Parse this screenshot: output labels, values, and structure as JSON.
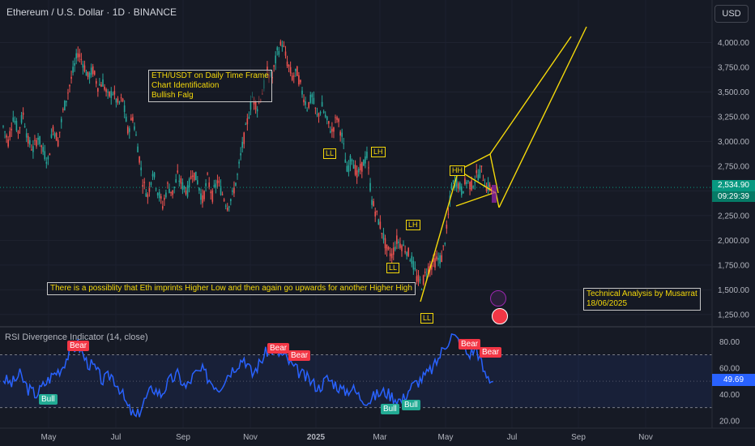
{
  "header": {
    "title": "Ethereum / U.S. Dollar · 1D · BINANCE",
    "currency_button": "USD"
  },
  "chart_data": {
    "type": "candlestick",
    "title": "Ethereum / U.S. Dollar · 1D · BINANCE",
    "price_axis": {
      "ticks": [
        "4,000.00",
        "3,750.00",
        "3,500.00",
        "3,250.00",
        "3,000.00",
        "2,750.00",
        "2,500.00",
        "2,250.00",
        "2,000.00",
        "1,750.00",
        "1,500.00",
        "1,250.00"
      ],
      "ylim": [
        1150,
        4250
      ]
    },
    "time_axis": {
      "ticks": [
        "May",
        "Jul",
        "Sep",
        "Nov",
        "2025",
        "Mar",
        "May",
        "Jul",
        "Sep",
        "Nov"
      ]
    },
    "last_price": "2,534.90",
    "countdown": "09:29:39",
    "price_path": [
      [
        0,
        3150
      ],
      [
        3,
        3000
      ],
      [
        6,
        3250
      ],
      [
        9,
        3100
      ],
      [
        12,
        3280
      ],
      [
        15,
        3000
      ],
      [
        18,
        2920
      ],
      [
        21,
        3050
      ],
      [
        24,
        2900
      ],
      [
        27,
        2800
      ],
      [
        30,
        3150
      ],
      [
        33,
        3000
      ],
      [
        36,
        3300
      ],
      [
        39,
        3500
      ],
      [
        42,
        3700
      ],
      [
        45,
        3900
      ],
      [
        48,
        3800
      ],
      [
        51,
        3650
      ],
      [
        54,
        3720
      ],
      [
        57,
        3560
      ],
      [
        60,
        3600
      ],
      [
        63,
        3450
      ],
      [
        66,
        3500
      ],
      [
        69,
        3380
      ],
      [
        72,
        3420
      ],
      [
        75,
        3100
      ],
      [
        78,
        3250
      ],
      [
        81,
        2950
      ],
      [
        84,
        2600
      ],
      [
        87,
        2450
      ],
      [
        90,
        2700
      ],
      [
        93,
        2500
      ],
      [
        96,
        2350
      ],
      [
        99,
        2550
      ],
      [
        102,
        2480
      ],
      [
        105,
        2650
      ],
      [
        108,
        2550
      ],
      [
        111,
        2500
      ],
      [
        114,
        2700
      ],
      [
        117,
        2600
      ],
      [
        120,
        2400
      ],
      [
        123,
        2620
      ],
      [
        126,
        2450
      ],
      [
        129,
        2600
      ],
      [
        132,
        2470
      ],
      [
        135,
        2350
      ],
      [
        138,
        2450
      ],
      [
        141,
        2650
      ],
      [
        144,
        2950
      ],
      [
        147,
        3200
      ],
      [
        150,
        3450
      ],
      [
        153,
        3350
      ],
      [
        156,
        3500
      ],
      [
        159,
        3700
      ],
      [
        162,
        3650
      ],
      [
        165,
        3900
      ],
      [
        168,
        4000
      ],
      [
        171,
        3800
      ],
      [
        174,
        3650
      ],
      [
        177,
        3700
      ],
      [
        180,
        3500
      ],
      [
        183,
        3350
      ],
      [
        186,
        3450
      ],
      [
        189,
        3250
      ],
      [
        192,
        3350
      ],
      [
        195,
        3200
      ],
      [
        198,
        3100
      ],
      [
        201,
        3250
      ],
      [
        204,
        3050
      ],
      [
        207,
        2700
      ],
      [
        210,
        2850
      ],
      [
        213,
        2650
      ],
      [
        216,
        2750
      ],
      [
        219,
        2850
      ],
      [
        222,
        2400
      ],
      [
        225,
        2250
      ],
      [
        228,
        2100
      ],
      [
        231,
        1900
      ],
      [
        234,
        1850
      ],
      [
        237,
        2000
      ],
      [
        240,
        1950
      ],
      [
        243,
        1900
      ],
      [
        246,
        1800
      ],
      [
        249,
        1620
      ],
      [
        252,
        1550
      ],
      [
        255,
        1700
      ],
      [
        258,
        1750
      ],
      [
        261,
        1800
      ],
      [
        264,
        1820
      ],
      [
        267,
        2100
      ],
      [
        270,
        2550
      ],
      [
        273,
        2600
      ],
      [
        276,
        2500
      ],
      [
        279,
        2600
      ],
      [
        282,
        2550
      ],
      [
        285,
        2650
      ],
      [
        288,
        2700
      ],
      [
        291,
        2540
      ],
      [
        294,
        2535
      ]
    ],
    "rsi": {
      "title": "RSI Divergence Indicator (14, close)",
      "axis_ticks": [
        "80.00",
        "60.00",
        "40.00",
        "20.00"
      ],
      "ylim": [
        15,
        90
      ],
      "band": [
        30,
        70
      ],
      "mid": 50,
      "value": "49.69",
      "path": [
        [
          0,
          52
        ],
        [
          5,
          48
        ],
        [
          10,
          55
        ],
        [
          15,
          44
        ],
        [
          20,
          40
        ],
        [
          25,
          48
        ],
        [
          30,
          55
        ],
        [
          35,
          60
        ],
        [
          40,
          72
        ],
        [
          45,
          78
        ],
        [
          50,
          65
        ],
        [
          55,
          60
        ],
        [
          60,
          50
        ],
        [
          65,
          55
        ],
        [
          70,
          45
        ],
        [
          75,
          30
        ],
        [
          80,
          22
        ],
        [
          85,
          35
        ],
        [
          90,
          45
        ],
        [
          95,
          40
        ],
        [
          100,
          50
        ],
        [
          105,
          55
        ],
        [
          110,
          45
        ],
        [
          115,
          55
        ],
        [
          120,
          58
        ],
        [
          125,
          50
        ],
        [
          130,
          45
        ],
        [
          135,
          55
        ],
        [
          140,
          62
        ],
        [
          145,
          68
        ],
        [
          150,
          55
        ],
        [
          155,
          65
        ],
        [
          160,
          75
        ],
        [
          165,
          72
        ],
        [
          170,
          68
        ],
        [
          175,
          60
        ],
        [
          180,
          55
        ],
        [
          185,
          50
        ],
        [
          190,
          45
        ],
        [
          195,
          52
        ],
        [
          200,
          48
        ],
        [
          205,
          42
        ],
        [
          210,
          45
        ],
        [
          215,
          38
        ],
        [
          220,
          35
        ],
        [
          225,
          40
        ],
        [
          230,
          42
        ],
        [
          235,
          38
        ],
        [
          240,
          35
        ],
        [
          245,
          45
        ],
        [
          250,
          50
        ],
        [
          255,
          55
        ],
        [
          260,
          62
        ],
        [
          265,
          75
        ],
        [
          270,
          85
        ],
        [
          275,
          80
        ],
        [
          280,
          70
        ],
        [
          285,
          75
        ],
        [
          290,
          55
        ],
        [
          295,
          49.7
        ]
      ]
    },
    "labels": {
      "ll1": "LL",
      "lh1": "LH",
      "lh2": "LH",
      "ll2": "LL",
      "hh": "HH",
      "ll3": "LL",
      "bull1": "Bull",
      "bull2": "Bull",
      "bull3": "Bull",
      "bear1": "Bear",
      "bear2": "Bear",
      "bear3": "Bear",
      "bear4": "Bear",
      "bear5": "Bear"
    },
    "notes": {
      "setup": [
        "ETH/USDT on Daily Time Frame",
        "Chart Identification",
        "Bullish Falg"
      ],
      "possibility": "There is a possiblity that Eth imprints Higher Low and then again go upwards for another Higher High",
      "author": [
        "Technical Analysis by Musarrat",
        "18/06/2025"
      ]
    },
    "colors": {
      "up": "#26a69a",
      "down": "#ef5350",
      "rsi_line": "#2962ff",
      "annotation": "#f5d90a",
      "price_tag": "#089981"
    }
  }
}
